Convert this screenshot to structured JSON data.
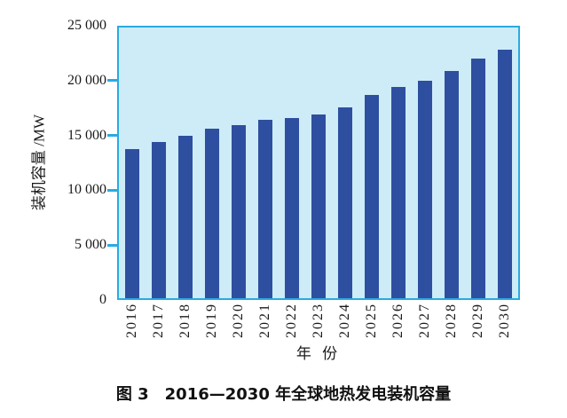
{
  "figure": {
    "caption": "图 3　2016—2030 年全球地热发电装机容量"
  },
  "chart_data": {
    "type": "bar",
    "title": "",
    "xlabel": "年 份",
    "ylabel": "装机容量 /MW",
    "categories": [
      "2016",
      "2017",
      "2018",
      "2019",
      "2020",
      "2021",
      "2022",
      "2023",
      "2024",
      "2025",
      "2026",
      "2027",
      "2028",
      "2029",
      "2030"
    ],
    "values": [
      13750,
      14400,
      15000,
      15700,
      16000,
      16450,
      16650,
      17000,
      17600,
      18750,
      19500,
      20100,
      21000,
      22100,
      22950
    ],
    "ylim": [
      0,
      25000
    ],
    "ytick_values": [
      0,
      5000,
      10000,
      15000,
      20000,
      25000
    ],
    "ytick_labels": [
      "0",
      "5 000",
      "10 000",
      "15 000",
      "20 000",
      "25 000"
    ],
    "grid": false,
    "legend": null,
    "colors": {
      "bar": "#2e4fa0",
      "plot_background": "#cdecf8",
      "axis": "#29abe2",
      "text": "#1a1a1a"
    }
  }
}
